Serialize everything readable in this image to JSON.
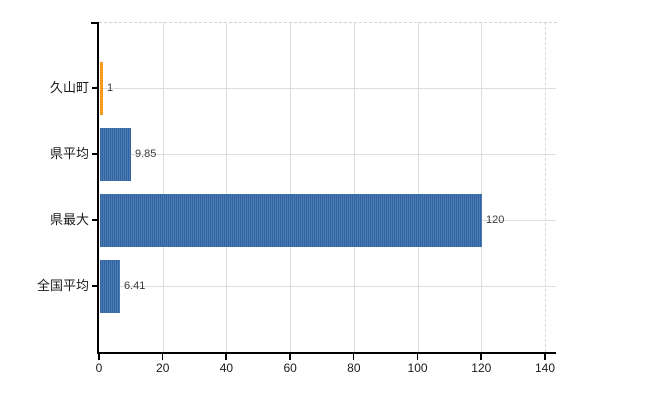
{
  "chart_data": {
    "type": "bar",
    "orientation": "horizontal",
    "title": "",
    "categories": [
      "久山町",
      "県平均",
      "県最大",
      "全国平均"
    ],
    "values": [
      1,
      9.85,
      120,
      6.41
    ],
    "value_labels": [
      "1",
      "9.85",
      "120",
      "6.41"
    ],
    "bar_colors": [
      "orange",
      "blue",
      "blue",
      "blue"
    ],
    "xlim": [
      0,
      140
    ],
    "tick_values": [
      0,
      20,
      40,
      60,
      80,
      100,
      120,
      140
    ],
    "tick_labels": [
      "0",
      "20",
      "40",
      "60",
      "80",
      "100",
      "120",
      "140"
    ],
    "grid": true,
    "legend": false,
    "colors": {
      "bar_blue": "#3e6fa9",
      "bar_orange": "#f59d1c",
      "gridline": "#d9e0d9",
      "axis": "#000000",
      "background": "#ffffff"
    }
  }
}
